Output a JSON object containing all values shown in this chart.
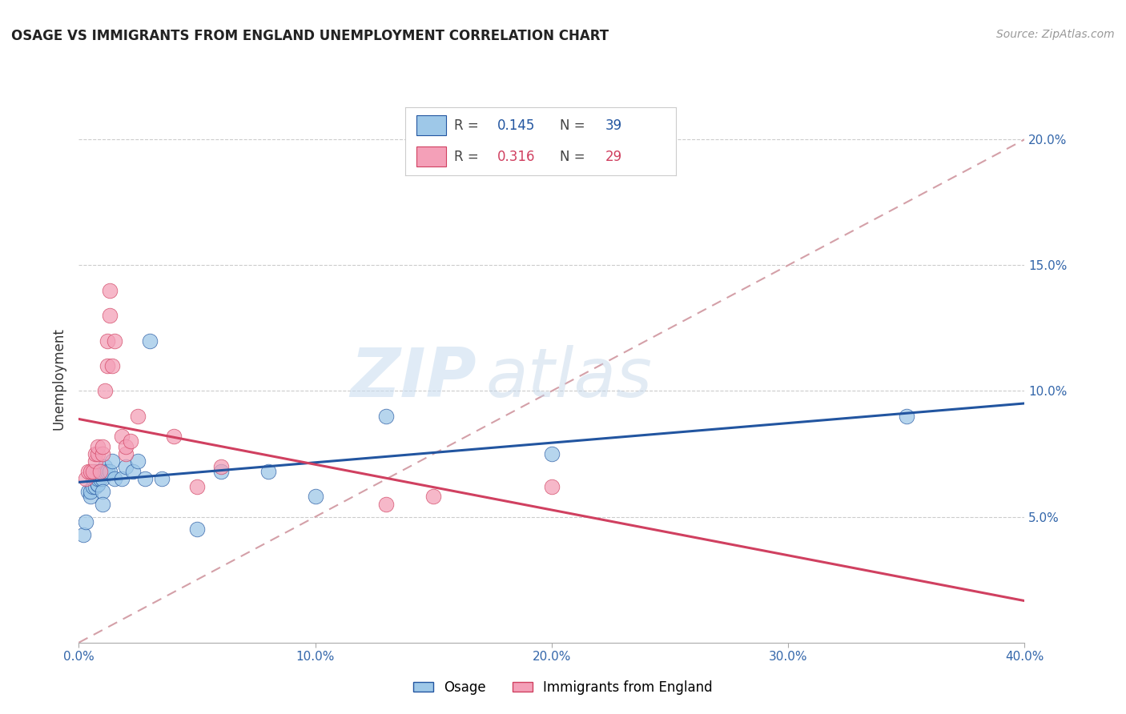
{
  "title": "OSAGE VS IMMIGRANTS FROM ENGLAND UNEMPLOYMENT CORRELATION CHART",
  "source": "Source: ZipAtlas.com",
  "ylabel": "Unemployment",
  "legend_label1": "Osage",
  "legend_label2": "Immigrants from England",
  "r1": 0.145,
  "n1": 39,
  "r2": 0.316,
  "n2": 29,
  "xlim": [
    0.0,
    0.4
  ],
  "ylim": [
    0.0,
    0.21
  ],
  "xticks": [
    0.0,
    0.1,
    0.2,
    0.3,
    0.4
  ],
  "yticks": [
    0.05,
    0.1,
    0.15,
    0.2
  ],
  "color_blue": "#9EC8E8",
  "color_pink": "#F4A0B8",
  "color_line_blue": "#2255A0",
  "color_line_pink": "#D04060",
  "color_dashed": "#D4A0A8",
  "background_color": "#FFFFFF",
  "grid_color": "#CCCCCC",
  "osage_x": [
    0.002,
    0.003,
    0.004,
    0.005,
    0.005,
    0.006,
    0.006,
    0.007,
    0.007,
    0.007,
    0.008,
    0.008,
    0.008,
    0.009,
    0.009,
    0.01,
    0.01,
    0.01,
    0.01,
    0.011,
    0.011,
    0.012,
    0.013,
    0.014,
    0.015,
    0.018,
    0.02,
    0.023,
    0.025,
    0.028,
    0.03,
    0.035,
    0.05,
    0.06,
    0.08,
    0.1,
    0.13,
    0.2,
    0.35
  ],
  "osage_y": [
    0.043,
    0.048,
    0.06,
    0.058,
    0.06,
    0.062,
    0.065,
    0.062,
    0.065,
    0.068,
    0.063,
    0.063,
    0.065,
    0.065,
    0.068,
    0.068,
    0.065,
    0.06,
    0.055,
    0.068,
    0.07,
    0.068,
    0.068,
    0.072,
    0.065,
    0.065,
    0.07,
    0.068,
    0.072,
    0.065,
    0.12,
    0.065,
    0.045,
    0.068,
    0.068,
    0.058,
    0.09,
    0.075,
    0.09
  ],
  "england_x": [
    0.003,
    0.004,
    0.005,
    0.006,
    0.007,
    0.007,
    0.008,
    0.008,
    0.009,
    0.01,
    0.01,
    0.011,
    0.012,
    0.012,
    0.013,
    0.013,
    0.014,
    0.015,
    0.018,
    0.02,
    0.02,
    0.022,
    0.025,
    0.04,
    0.05,
    0.06,
    0.13,
    0.15,
    0.2
  ],
  "england_y": [
    0.065,
    0.068,
    0.068,
    0.068,
    0.072,
    0.075,
    0.075,
    0.078,
    0.068,
    0.075,
    0.078,
    0.1,
    0.11,
    0.12,
    0.13,
    0.14,
    0.11,
    0.12,
    0.082,
    0.075,
    0.078,
    0.08,
    0.09,
    0.082,
    0.062,
    0.07,
    0.055,
    0.058,
    0.062
  ]
}
